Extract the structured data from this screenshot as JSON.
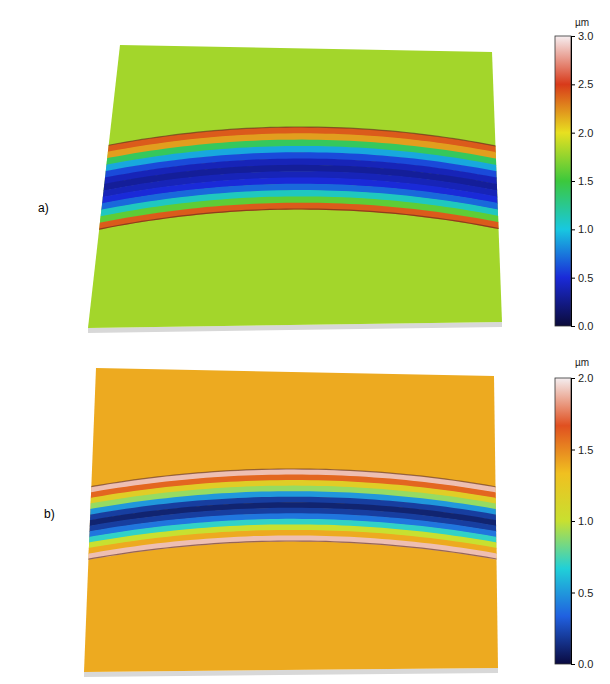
{
  "chart_data": [
    {
      "type": "surface",
      "panel": "a)",
      "unit": "µm",
      "colorbar_range": [
        0,
        3
      ],
      "colorbar_ticks": [
        {
          "value": 0,
          "label": "0.0"
        },
        0.5,
        {
          "value": 1,
          "label": "1.0"
        },
        1.5,
        {
          "value": 2,
          "label": "2.0"
        },
        2.5,
        {
          "value": 3,
          "label": "3.0"
        }
      ],
      "surface_level": 1.8,
      "profile": [
        2.4,
        2.2,
        1.4,
        0.9,
        0.6,
        0.4,
        0.3,
        0.4,
        0.5,
        0.7,
        1.1,
        1.6,
        2.4
      ]
    },
    {
      "type": "surface",
      "panel": "b)",
      "unit": "µm",
      "colorbar_range": [
        0,
        2
      ],
      "colorbar_ticks": [
        {
          "value": 0,
          "label": "0.0"
        },
        0.5,
        {
          "value": 1,
          "label": "1.0"
        },
        1.5,
        {
          "value": 2,
          "label": "2.0"
        }
      ],
      "surface_level": 1.4,
      "profile": [
        1.9,
        1.6,
        1.2,
        0.9,
        0.5,
        0.2,
        0.1,
        0.2,
        0.4,
        0.7,
        1.0,
        1.4,
        1.9
      ]
    }
  ]
}
